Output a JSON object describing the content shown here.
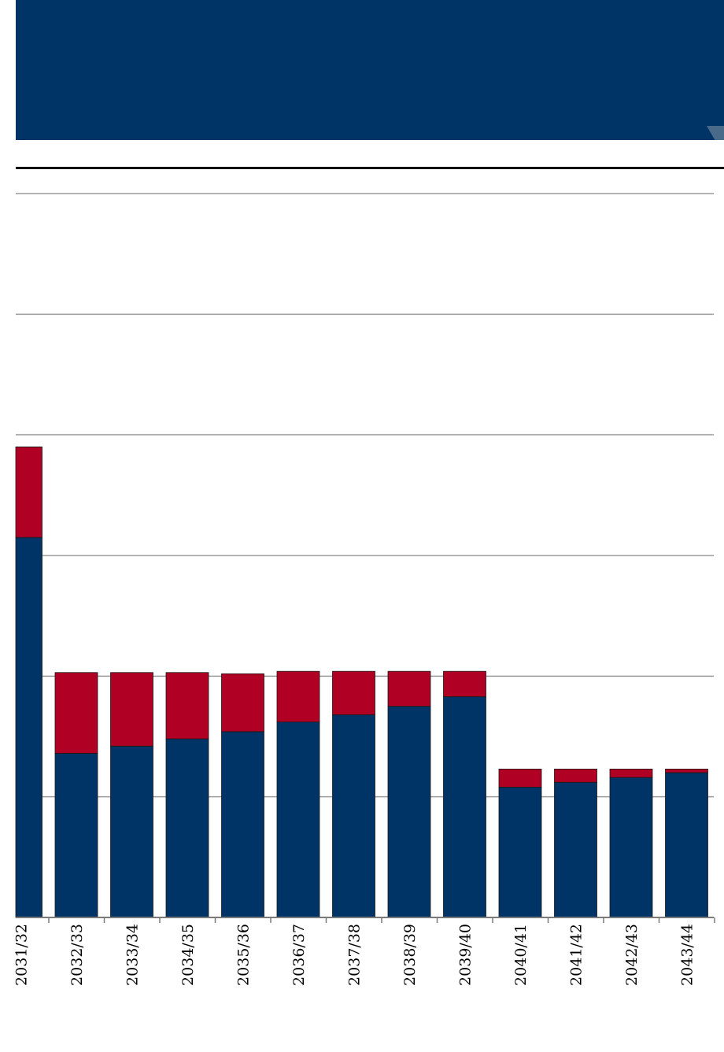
{
  "colors": {
    "primary": "#003366",
    "secondary": "#b00024",
    "grid": "#9a9a9a",
    "header": "#003366"
  },
  "chart_data": {
    "type": "bar",
    "stacked": true,
    "categories": [
      "2031/32",
      "2032/33",
      "2033/34",
      "2034/35",
      "2035/36",
      "2036/37",
      "2037/38",
      "2038/39",
      "2039/40",
      "2040/41",
      "2041/42",
      "2042/43",
      "2043/44"
    ],
    "series": [
      {
        "values": [
          3.15,
          1.36,
          1.42,
          1.48,
          1.54,
          1.62,
          1.68,
          1.75,
          1.83,
          1.08,
          1.12,
          1.16,
          1.2
        ],
        "color": "#003366"
      },
      {
        "values": [
          0.75,
          0.67,
          0.61,
          0.55,
          0.48,
          0.42,
          0.36,
          0.29,
          0.21,
          0.15,
          0.11,
          0.07,
          0.03
        ],
        "color": "#b00024"
      }
    ],
    "ylim": [
      0,
      6
    ],
    "gridlines": [
      1,
      2,
      3,
      4,
      5,
      6
    ],
    "grid": true
  }
}
